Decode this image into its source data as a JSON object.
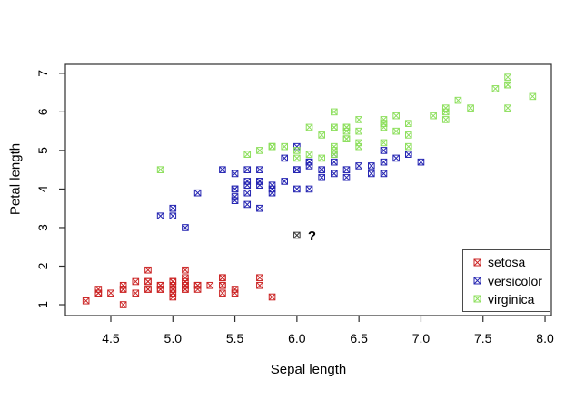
{
  "chart_data": {
    "type": "scatter",
    "title": "",
    "xlabel": "Sepal length",
    "ylabel": "Petal length",
    "xlim": [
      4.134,
      8.051
    ],
    "ylim": [
      0.718,
      7.232
    ],
    "x_tick_values": [
      4.5,
      5.0,
      5.5,
      6.0,
      6.5,
      7.0,
      7.5,
      8.0
    ],
    "x_tick_labels": [
      "4.5",
      "5.0",
      "5.5",
      "6.0",
      "6.5",
      "7.0",
      "7.5",
      "8.0"
    ],
    "y_tick_values": [
      1,
      2,
      3,
      4,
      5,
      6,
      7
    ],
    "y_tick_labels": [
      "1",
      "2",
      "3",
      "4",
      "5",
      "6",
      "7"
    ],
    "grid": false,
    "legend_position": "bottom-right",
    "marker": "square-with-x",
    "axis_color": "#2e2e2e",
    "series": [
      {
        "name": "setosa",
        "color": "#cb2424",
        "points": [
          [
            5.1,
            1.4
          ],
          [
            4.9,
            1.4
          ],
          [
            4.7,
            1.3
          ],
          [
            4.6,
            1.5
          ],
          [
            5.0,
            1.4
          ],
          [
            5.4,
            1.7
          ],
          [
            4.6,
            1.4
          ],
          [
            5.0,
            1.5
          ],
          [
            4.4,
            1.4
          ],
          [
            4.9,
            1.5
          ],
          [
            5.4,
            1.5
          ],
          [
            4.8,
            1.6
          ],
          [
            4.8,
            1.4
          ],
          [
            4.3,
            1.1
          ],
          [
            5.8,
            1.2
          ],
          [
            5.7,
            1.5
          ],
          [
            5.4,
            1.3
          ],
          [
            5.1,
            1.4
          ],
          [
            5.7,
            1.7
          ],
          [
            5.1,
            1.5
          ],
          [
            5.4,
            1.7
          ],
          [
            5.1,
            1.5
          ],
          [
            4.6,
            1.0
          ],
          [
            5.1,
            1.7
          ],
          [
            4.8,
            1.9
          ],
          [
            5.0,
            1.6
          ],
          [
            5.0,
            1.6
          ],
          [
            5.2,
            1.5
          ],
          [
            5.2,
            1.4
          ],
          [
            4.7,
            1.6
          ],
          [
            4.8,
            1.6
          ],
          [
            5.4,
            1.5
          ],
          [
            5.2,
            1.5
          ],
          [
            5.5,
            1.4
          ],
          [
            4.9,
            1.5
          ],
          [
            5.0,
            1.2
          ],
          [
            5.5,
            1.3
          ],
          [
            4.9,
            1.4
          ],
          [
            4.4,
            1.3
          ],
          [
            5.1,
            1.5
          ],
          [
            5.0,
            1.3
          ],
          [
            4.5,
            1.3
          ],
          [
            4.4,
            1.3
          ],
          [
            5.0,
            1.6
          ],
          [
            5.1,
            1.9
          ],
          [
            4.8,
            1.4
          ],
          [
            5.1,
            1.6
          ],
          [
            4.6,
            1.4
          ],
          [
            5.3,
            1.5
          ],
          [
            5.0,
            1.4
          ]
        ]
      },
      {
        "name": "versicolor",
        "color": "#2525b2",
        "points": [
          [
            7.0,
            4.7
          ],
          [
            6.4,
            4.5
          ],
          [
            6.9,
            4.9
          ],
          [
            5.5,
            4.0
          ],
          [
            6.5,
            4.6
          ],
          [
            5.7,
            4.5
          ],
          [
            6.3,
            4.7
          ],
          [
            4.9,
            3.3
          ],
          [
            6.6,
            4.6
          ],
          [
            5.2,
            3.9
          ],
          [
            5.0,
            3.5
          ],
          [
            5.9,
            4.2
          ],
          [
            6.0,
            4.0
          ],
          [
            6.1,
            4.7
          ],
          [
            5.6,
            3.6
          ],
          [
            6.7,
            4.4
          ],
          [
            5.6,
            4.5
          ],
          [
            5.8,
            4.1
          ],
          [
            6.2,
            4.5
          ],
          [
            5.6,
            3.9
          ],
          [
            5.9,
            4.8
          ],
          [
            6.1,
            4.0
          ],
          [
            6.3,
            4.9
          ],
          [
            6.1,
            4.7
          ],
          [
            6.4,
            4.3
          ],
          [
            6.6,
            4.4
          ],
          [
            6.8,
            4.8
          ],
          [
            6.7,
            5.0
          ],
          [
            6.0,
            4.5
          ],
          [
            5.7,
            3.5
          ],
          [
            5.5,
            3.8
          ],
          [
            5.5,
            3.7
          ],
          [
            5.8,
            3.9
          ],
          [
            6.0,
            5.1
          ],
          [
            5.4,
            4.5
          ],
          [
            6.0,
            4.5
          ],
          [
            6.7,
            4.7
          ],
          [
            6.3,
            4.4
          ],
          [
            5.6,
            4.1
          ],
          [
            5.5,
            4.0
          ],
          [
            5.5,
            4.4
          ],
          [
            6.1,
            4.6
          ],
          [
            5.8,
            4.0
          ],
          [
            5.0,
            3.3
          ],
          [
            5.6,
            4.2
          ],
          [
            5.7,
            4.2
          ],
          [
            5.7,
            4.2
          ],
          [
            6.2,
            4.3
          ],
          [
            5.1,
            3.0
          ],
          [
            5.7,
            4.1
          ]
        ]
      },
      {
        "name": "virginica",
        "color": "#8ddf5d",
        "points": [
          [
            6.3,
            6.0
          ],
          [
            5.8,
            5.1
          ],
          [
            7.1,
            5.9
          ],
          [
            6.3,
            5.6
          ],
          [
            6.5,
            5.8
          ],
          [
            7.6,
            6.6
          ],
          [
            4.9,
            4.5
          ],
          [
            7.3,
            6.3
          ],
          [
            6.7,
            5.8
          ],
          [
            7.2,
            6.1
          ],
          [
            6.5,
            5.1
          ],
          [
            6.4,
            5.3
          ],
          [
            6.8,
            5.5
          ],
          [
            5.7,
            5.0
          ],
          [
            5.8,
            5.1
          ],
          [
            6.4,
            5.3
          ],
          [
            6.5,
            5.5
          ],
          [
            7.7,
            6.7
          ],
          [
            7.7,
            6.9
          ],
          [
            6.0,
            5.0
          ],
          [
            6.9,
            5.7
          ],
          [
            5.6,
            4.9
          ],
          [
            7.7,
            6.7
          ],
          [
            6.3,
            4.9
          ],
          [
            6.7,
            5.7
          ],
          [
            7.2,
            6.0
          ],
          [
            6.2,
            4.8
          ],
          [
            6.1,
            4.9
          ],
          [
            6.4,
            5.6
          ],
          [
            7.2,
            5.8
          ],
          [
            7.4,
            6.1
          ],
          [
            7.9,
            6.4
          ],
          [
            6.4,
            5.6
          ],
          [
            6.3,
            5.1
          ],
          [
            6.1,
            5.6
          ],
          [
            7.7,
            6.1
          ],
          [
            6.3,
            5.6
          ],
          [
            6.4,
            5.5
          ],
          [
            6.0,
            4.8
          ],
          [
            6.9,
            5.4
          ],
          [
            6.7,
            5.6
          ],
          [
            6.9,
            5.1
          ],
          [
            5.8,
            5.1
          ],
          [
            6.8,
            5.9
          ],
          [
            6.7,
            5.7
          ],
          [
            6.7,
            5.2
          ],
          [
            6.3,
            5.0
          ],
          [
            6.5,
            5.2
          ],
          [
            6.2,
            5.4
          ],
          [
            5.9,
            5.1
          ]
        ]
      }
    ],
    "unknown_point": {
      "x": 6.0,
      "y": 2.8,
      "label": "?",
      "color": "#3a3a3a"
    },
    "legend": {
      "entries": [
        {
          "label": "setosa",
          "color": "#cb2424"
        },
        {
          "label": "versicolor",
          "color": "#2525b2"
        },
        {
          "label": "virginica",
          "color": "#8ddf5d"
        }
      ]
    }
  }
}
